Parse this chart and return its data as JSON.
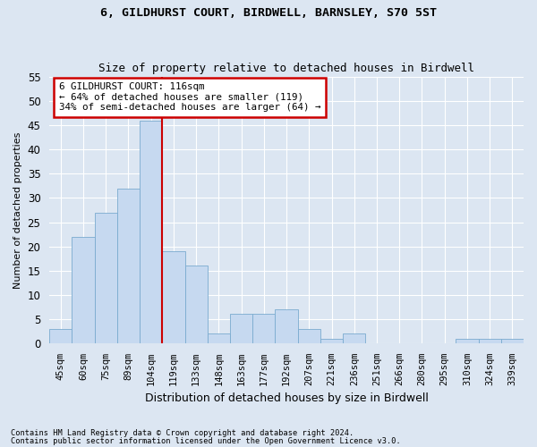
{
  "title1": "6, GILDHURST COURT, BIRDWELL, BARNSLEY, S70 5ST",
  "title2": "Size of property relative to detached houses in Birdwell",
  "xlabel": "Distribution of detached houses by size in Birdwell",
  "ylabel": "Number of detached properties",
  "categories": [
    "45sqm",
    "60sqm",
    "75sqm",
    "89sqm",
    "104sqm",
    "119sqm",
    "133sqm",
    "148sqm",
    "163sqm",
    "177sqm",
    "192sqm",
    "207sqm",
    "221sqm",
    "236sqm",
    "251sqm",
    "266sqm",
    "280sqm",
    "295sqm",
    "310sqm",
    "324sqm",
    "339sqm"
  ],
  "values": [
    3,
    22,
    27,
    32,
    46,
    19,
    16,
    2,
    6,
    6,
    7,
    3,
    1,
    2,
    0,
    0,
    0,
    0,
    1,
    1,
    1
  ],
  "bar_color": "#c6d9f0",
  "bar_edge_color": "#7aabcf",
  "vline_index": 5,
  "vline_color": "#cc0000",
  "annotation_box_text": "6 GILDHURST COURT: 116sqm\n← 64% of detached houses are smaller (119)\n34% of semi-detached houses are larger (64) →",
  "annotation_box_color": "#cc0000",
  "ylim": [
    0,
    55
  ],
  "yticks": [
    0,
    5,
    10,
    15,
    20,
    25,
    30,
    35,
    40,
    45,
    50,
    55
  ],
  "footnote1": "Contains HM Land Registry data © Crown copyright and database right 2024.",
  "footnote2": "Contains public sector information licensed under the Open Government Licence v3.0.",
  "background_color": "#dce6f2",
  "plot_bg_color": "#dce6f2",
  "grid_color": "#ffffff"
}
